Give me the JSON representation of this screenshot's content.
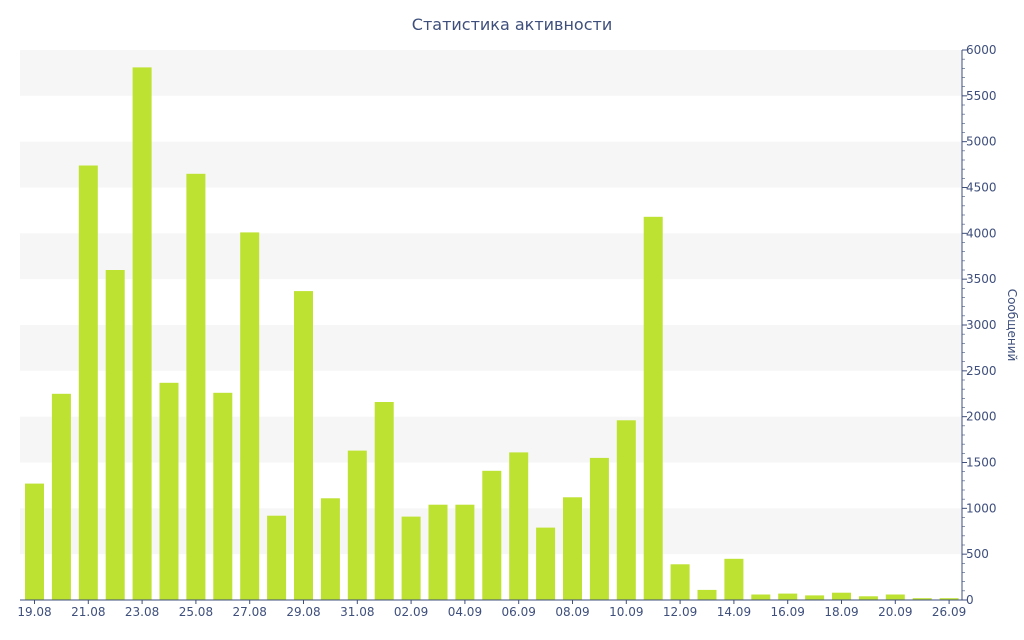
{
  "chart_data": {
    "type": "bar",
    "title": "Статистика активности",
    "ylabel": "Сообщений",
    "y_axis_position": "right",
    "ylim": [
      0,
      6000
    ],
    "y_ticks": [
      0,
      500,
      1000,
      1500,
      2000,
      2500,
      3000,
      3500,
      4000,
      4500,
      5000,
      5500,
      6000
    ],
    "grid": "alternating horizontal bands",
    "bar_color": "#bde231",
    "band_color": "#f6f6f6",
    "text_color": "#3e4f7c",
    "categories": [
      "19.08",
      "20.08",
      "21.08",
      "22.08",
      "23.08",
      "24.08",
      "25.08",
      "26.08",
      "27.08",
      "28.08",
      "29.08",
      "30.08",
      "31.08",
      "01.09",
      "02.09",
      "03.09",
      "04.09",
      "05.09",
      "06.09",
      "07.09",
      "08.09",
      "09.09",
      "10.09",
      "11.09",
      "12.09",
      "13.09",
      "14.09",
      "15.09",
      "16.09",
      "17.09",
      "18.09",
      "19.09",
      "20.09",
      "21.09",
      "26.09"
    ],
    "x_tick_labels": [
      "19.08",
      "21.08",
      "23.08",
      "25.08",
      "27.08",
      "29.08",
      "31.08",
      "02.09",
      "04.09",
      "06.09",
      "08.09",
      "10.09",
      "12.09",
      "14.09",
      "16.09",
      "18.09",
      "20.09",
      "26.09"
    ],
    "values": [
      1270,
      2250,
      4740,
      3600,
      5810,
      2370,
      4650,
      2260,
      4010,
      920,
      3370,
      1110,
      1630,
      2160,
      910,
      1040,
      1040,
      1410,
      1610,
      790,
      1120,
      1550,
      1960,
      4180,
      390,
      110,
      450,
      60,
      70,
      50,
      80,
      40,
      60,
      20,
      20
    ]
  }
}
